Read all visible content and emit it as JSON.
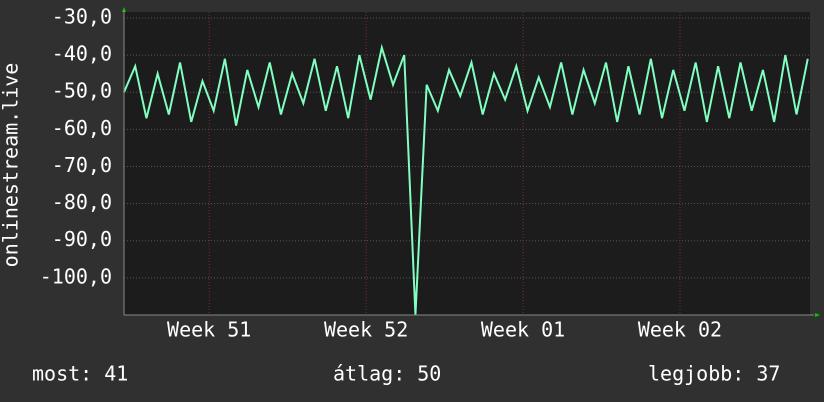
{
  "chart_data": {
    "type": "line",
    "y_label": "onlinestream.live",
    "x": [
      0,
      0.5,
      1,
      1.5,
      2,
      2.5,
      3,
      3.5,
      4,
      4.5,
      5,
      5.5,
      6,
      6.5,
      7,
      7.5,
      8,
      8.5,
      9,
      9.5,
      10,
      10.5,
      11,
      11.5,
      12,
      12.5,
      13,
      13.5,
      14,
      14.5,
      15,
      15.5,
      16,
      16.5,
      17,
      17.5,
      18,
      18.5,
      19,
      19.5,
      20,
      20.5,
      21,
      21.5,
      22,
      22.5,
      23,
      23.5,
      24,
      24.5,
      25,
      25.5,
      26,
      26.5,
      27,
      27.5,
      28,
      28.5,
      29,
      29.5,
      30,
      30.5
    ],
    "series": [
      {
        "color": "#80ffc0",
        "values": [
          -50,
          -43,
          -57,
          -45,
          -56,
          -42,
          -58,
          -47,
          -55,
          -41,
          -59,
          -44,
          -54,
          -42,
          -56,
          -45,
          -53,
          -41,
          -55,
          -43,
          -57,
          -40,
          -52,
          -38,
          -48,
          -40,
          -110,
          -48,
          -55,
          -44,
          -51,
          -42,
          -56,
          -45,
          -52,
          -43,
          -55,
          -46,
          -54,
          -42,
          -56,
          -44,
          -53,
          -42,
          -58,
          -43,
          -56,
          -41,
          -57,
          -44,
          -55,
          -42,
          -58,
          -43,
          -57,
          -42,
          -55,
          -44,
          -58,
          -40,
          -56,
          -41
        ]
      }
    ],
    "xlim": [
      0,
      30.6
    ],
    "xticks": [
      {
        "value": 3.8,
        "label": "Week 51"
      },
      {
        "value": 10.8,
        "label": "Week 52"
      },
      {
        "value": 17.8,
        "label": "Week 01"
      },
      {
        "value": 24.8,
        "label": "Week 02"
      }
    ],
    "ylim": [
      -110,
      -28.4
    ],
    "yticks": [
      {
        "value": -30,
        "label": "-30,0"
      },
      {
        "value": -40,
        "label": "-40,0"
      },
      {
        "value": -50,
        "label": "-50,0"
      },
      {
        "value": -60,
        "label": "-60,0"
      },
      {
        "value": -70,
        "label": "-70,0"
      },
      {
        "value": -80,
        "label": "-80,0"
      },
      {
        "value": -90,
        "label": "-90,0"
      },
      {
        "value": -100,
        "label": "-100,0"
      }
    ],
    "grid": true,
    "stats": [
      {
        "label": "most:",
        "value": 41
      },
      {
        "label": "átlag:",
        "value": 50
      },
      {
        "label": "legjobb:",
        "value": 37
      }
    ]
  }
}
